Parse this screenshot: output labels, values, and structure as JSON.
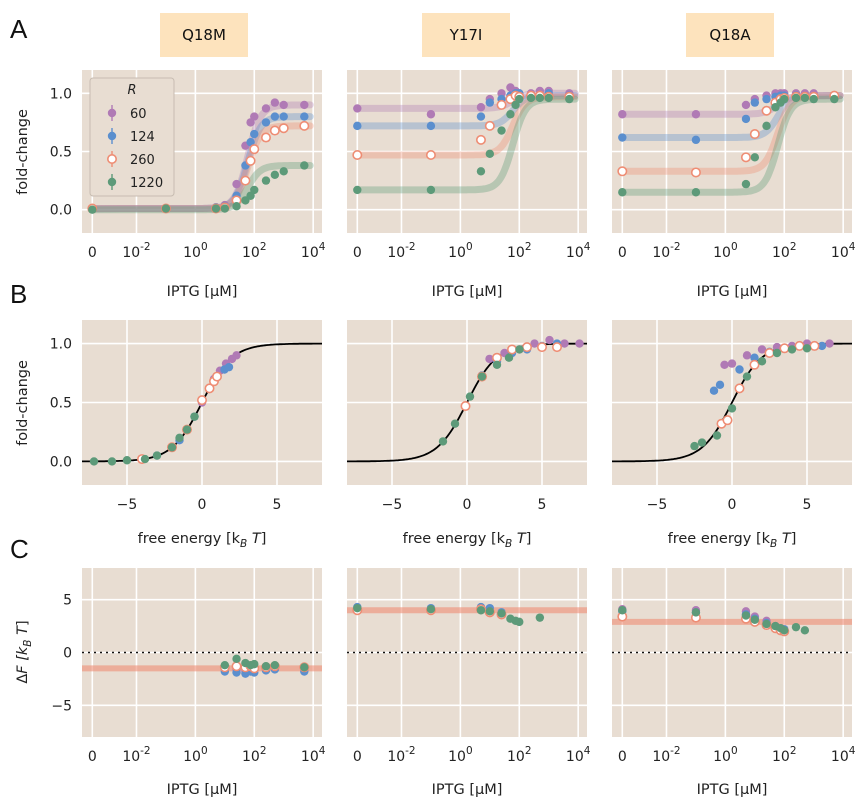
{
  "panel_letters": [
    "A",
    "B",
    "C"
  ],
  "mutant_titles": [
    "Q18M",
    "Y17I",
    "Q18A"
  ],
  "colors": {
    "60": "#b07ab5",
    "124": "#5b8fce",
    "260": "#ee8d74",
    "1220": "#5d9a79",
    "panel_bg": "#e8ddd2",
    "title_box": "#fde3bd",
    "master_curve": "#000000"
  },
  "legend": {
    "title": "R",
    "entries": [
      "60",
      "124",
      "260",
      "1220"
    ],
    "placement": "upper-left",
    "marker_260": "open-circle"
  },
  "chart_data": [
    {
      "type": "scatter",
      "row": "A",
      "xlabel": "IPTG [µM]",
      "ylabel": "fold-change",
      "x_scale": "symlog",
      "x_ticks": [
        "0",
        "10^-2",
        "10^0",
        "10^2",
        "10^4"
      ],
      "y_ticks": [
        "0.0",
        "0.5",
        "1.0"
      ],
      "ylim": [
        -0.2,
        1.2
      ],
      "grid": true,
      "panels": [
        {
          "title": "Q18M",
          "x": [
            0,
            0.1,
            5,
            10,
            25,
            50,
            75,
            100,
            250,
            500,
            1000,
            5000
          ],
          "series": [
            {
              "name": "60",
              "y": [
                0.01,
                0.01,
                0.02,
                0.04,
                0.22,
                0.55,
                0.75,
                0.8,
                0.87,
                0.92,
                0.9,
                0.9
              ]
            },
            {
              "name": "124",
              "y": [
                0.01,
                0.01,
                0.02,
                0.03,
                0.12,
                0.38,
                0.58,
                0.65,
                0.75,
                0.8,
                0.8,
                0.8
              ]
            },
            {
              "name": "260",
              "y": [
                0.01,
                0.01,
                0.01,
                0.02,
                0.08,
                0.25,
                0.42,
                0.52,
                0.62,
                0.68,
                0.7,
                0.72
              ]
            },
            {
              "name": "1220",
              "y": [
                0.0,
                0.01,
                0.01,
                0.01,
                0.03,
                0.08,
                0.12,
                0.17,
                0.25,
                0.3,
                0.33,
                0.38
              ]
            }
          ]
        },
        {
          "title": "Y17I",
          "x": [
            0,
            0.1,
            5,
            10,
            25,
            50,
            75,
            100,
            250,
            500,
            1000,
            5000
          ],
          "series": [
            {
              "name": "60",
              "y": [
                0.87,
                0.82,
                0.88,
                0.95,
                1.0,
                1.05,
                1.02,
                1.0,
                1.0,
                1.02,
                1.02,
                1.0
              ]
            },
            {
              "name": "124",
              "y": [
                0.72,
                0.72,
                0.8,
                0.92,
                0.95,
                0.98,
                1.0,
                1.0,
                0.98,
                0.98,
                1.0,
                0.98
              ]
            },
            {
              "name": "260",
              "y": [
                0.47,
                0.47,
                0.6,
                0.72,
                0.9,
                0.95,
                0.98,
                0.97,
                0.98,
                0.98,
                0.97,
                0.97
              ]
            },
            {
              "name": "1220",
              "y": [
                0.17,
                0.17,
                0.33,
                0.48,
                0.68,
                0.82,
                0.9,
                0.95,
                0.96,
                0.96,
                0.96,
                0.95
              ]
            }
          ]
        },
        {
          "title": "Q18A",
          "x": [
            0,
            0.1,
            5,
            10,
            25,
            50,
            75,
            100,
            250,
            500,
            1000,
            5000
          ],
          "series": [
            {
              "name": "60",
              "y": [
                0.82,
                0.82,
                0.9,
                0.95,
                0.98,
                1.0,
                1.0,
                1.0,
                1.0,
                1.0,
                1.0,
                0.98
              ]
            },
            {
              "name": "124",
              "y": [
                0.62,
                0.6,
                0.78,
                0.92,
                0.95,
                0.97,
                0.98,
                0.98,
                0.98,
                0.97,
                0.97,
                0.98
              ]
            },
            {
              "name": "260",
              "y": [
                0.33,
                0.32,
                0.45,
                0.65,
                0.85,
                0.92,
                0.95,
                0.96,
                0.97,
                0.97,
                0.97,
                0.98
              ]
            },
            {
              "name": "1220",
              "y": [
                0.15,
                0.15,
                0.22,
                0.45,
                0.72,
                0.88,
                0.92,
                0.95,
                0.96,
                0.96,
                0.95,
                0.95
              ]
            }
          ]
        }
      ]
    },
    {
      "type": "scatter",
      "row": "B",
      "xlabel": "free energy [k_B T]",
      "ylabel": "fold-change",
      "xlim": [
        -8,
        8
      ],
      "ylim": [
        -0.2,
        1.2
      ],
      "x_ticks": [
        "−5",
        "0",
        "5"
      ],
      "y_ticks": [
        "0.0",
        "0.5",
        "1.0"
      ],
      "master_curve": "1/(1+exp(-F))",
      "grid": true,
      "panels": [
        {
          "title": "Q18M",
          "points": [
            {
              "name": "60",
              "x": [
                -1.0,
                0.0,
                0.8,
                1.2,
                1.6,
                2.0,
                2.3
              ],
              "y": [
                0.27,
                0.5,
                0.7,
                0.77,
                0.83,
                0.87,
                0.9
              ]
            },
            {
              "name": "124",
              "x": [
                -3.0,
                -1.5,
                -0.5,
                0.5,
                1.0,
                1.5,
                1.8
              ],
              "y": [
                0.05,
                0.18,
                0.38,
                0.62,
                0.72,
                0.78,
                0.8
              ]
            },
            {
              "name": "260",
              "x": [
                -4.0,
                -2.0,
                -1.0,
                0.0,
                0.5,
                0.8,
                1.0
              ],
              "y": [
                0.02,
                0.12,
                0.27,
                0.52,
                0.62,
                0.68,
                0.72
              ]
            },
            {
              "name": "1220",
              "x": [
                -7.2,
                -6.0,
                -5.0,
                -3.8,
                -3.0,
                -2.0,
                -1.5,
                -1.0,
                -0.5
              ],
              "y": [
                0.0,
                0.0,
                0.01,
                0.02,
                0.05,
                0.12,
                0.2,
                0.27,
                0.38
              ]
            }
          ]
        },
        {
          "title": "Y17I",
          "points": [
            {
              "name": "60",
              "x": [
                1.5,
                2.5,
                3.5,
                4.5,
                5.5,
                6.5,
                7.5
              ],
              "y": [
                0.87,
                0.92,
                0.95,
                1.0,
                1.03,
                1.0,
                1.0
              ]
            },
            {
              "name": "124",
              "x": [
                1.0,
                2.0,
                3.0,
                4.0,
                5.0,
                6.0
              ],
              "y": [
                0.73,
                0.85,
                0.92,
                0.95,
                0.98,
                1.0
              ]
            },
            {
              "name": "260",
              "x": [
                -0.1,
                1.0,
                2.0,
                3.0,
                4.0,
                5.0,
                6.0
              ],
              "y": [
                0.47,
                0.72,
                0.88,
                0.95,
                0.97,
                0.97,
                0.97
              ]
            },
            {
              "name": "1220",
              "x": [
                -1.6,
                -0.8,
                0.2,
                1.0,
                2.0,
                2.8,
                3.5
              ],
              "y": [
                0.17,
                0.32,
                0.55,
                0.72,
                0.82,
                0.88,
                0.95
              ]
            }
          ]
        },
        {
          "title": "Q18A",
          "points": [
            {
              "name": "60",
              "x": [
                -0.5,
                0.0,
                1.0,
                2.0,
                3.0,
                4.0,
                5.0,
                6.5
              ],
              "y": [
                0.82,
                0.83,
                0.9,
                0.95,
                0.97,
                0.98,
                1.0,
                1.0
              ]
            },
            {
              "name": "124",
              "x": [
                -1.2,
                -0.8,
                0.5,
                1.5,
                2.5,
                3.5,
                4.5,
                6.0
              ],
              "y": [
                0.6,
                0.65,
                0.78,
                0.88,
                0.93,
                0.96,
                0.98,
                0.98
              ]
            },
            {
              "name": "260",
              "x": [
                -0.7,
                -0.3,
                0.5,
                1.5,
                2.5,
                3.5,
                4.5,
                5.5
              ],
              "y": [
                0.32,
                0.35,
                0.62,
                0.82,
                0.92,
                0.96,
                0.98,
                0.98
              ]
            },
            {
              "name": "1220",
              "x": [
                -2.5,
                -2.0,
                -1.0,
                0.0,
                1.0,
                2.0,
                3.0,
                4.0,
                5.0
              ],
              "y": [
                0.13,
                0.16,
                0.22,
                0.45,
                0.72,
                0.85,
                0.92,
                0.95,
                0.96
              ]
            }
          ]
        }
      ]
    },
    {
      "type": "scatter",
      "row": "C",
      "xlabel": "IPTG [µM]",
      "ylabel": "ΔF [k_B T]",
      "x_scale": "symlog",
      "x_ticks": [
        "0",
        "10^-2",
        "10^0",
        "10^2",
        "10^4"
      ],
      "y_ticks": [
        "−5",
        "0",
        "5"
      ],
      "ylim": [
        -8,
        8
      ],
      "reference_line": 0,
      "grid": true,
      "panels": [
        {
          "title": "Q18M",
          "fit_value": -1.5,
          "points_x": [
            10,
            25,
            50,
            75,
            100,
            250,
            500,
            5000
          ],
          "series": [
            {
              "name": "60",
              "y": [
                -1.5,
                -1.6,
                -1.8,
                -1.7,
                -1.6,
                -1.5,
                -1.5,
                -1.6
              ]
            },
            {
              "name": "124",
              "y": [
                -1.8,
                -1.9,
                -2.0,
                -1.8,
                -1.9,
                -1.7,
                -1.6,
                -1.8
              ]
            },
            {
              "name": "260",
              "y": [
                -1.4,
                -1.3,
                -1.4,
                -1.3,
                -1.5,
                -1.4,
                -1.3,
                -1.4
              ]
            },
            {
              "name": "1220",
              "y": [
                -1.2,
                -0.6,
                -1.0,
                -1.2,
                -1.1,
                -1.3,
                -1.2,
                -1.4
              ]
            }
          ]
        },
        {
          "title": "Y17I",
          "fit_value": 4.0,
          "points_x": [
            0,
            0.1,
            5,
            10,
            25,
            50,
            75,
            100,
            500
          ],
          "series": [
            {
              "name": "60",
              "y": [
                4.2,
                4.1,
                4.1,
                4.0,
                null,
                null,
                null,
                null,
                null
              ]
            },
            {
              "name": "124",
              "y": [
                4.3,
                4.2,
                4.3,
                4.2,
                3.8,
                null,
                null,
                null,
                null
              ]
            },
            {
              "name": "260",
              "y": [
                4.0,
                4.0,
                4.1,
                3.8,
                3.6,
                null,
                null,
                null,
                null
              ]
            },
            {
              "name": "1220",
              "y": [
                4.2,
                4.1,
                4.0,
                3.9,
                3.7,
                3.2,
                3.0,
                2.9,
                3.3
              ]
            }
          ]
        },
        {
          "title": "Q18A",
          "fit_value": 2.9,
          "points_x": [
            0,
            0.1,
            5,
            10,
            25,
            50,
            75,
            100,
            250,
            500
          ],
          "series": [
            {
              "name": "60",
              "y": [
                4.1,
                4.0,
                3.9,
                3.4,
                3.0,
                2.5,
                2.3,
                2.2,
                null,
                null
              ]
            },
            {
              "name": "124",
              "y": [
                3.9,
                3.8,
                3.6,
                3.2,
                2.8,
                2.4,
                2.2,
                2.2,
                null,
                null
              ]
            },
            {
              "name": "260",
              "y": [
                3.4,
                3.3,
                3.2,
                2.9,
                2.6,
                2.3,
                2.1,
                2.0,
                null,
                null
              ]
            },
            {
              "name": "1220",
              "y": [
                4.0,
                3.8,
                3.5,
                3.1,
                2.7,
                2.5,
                2.3,
                2.1,
                2.4,
                2.1
              ]
            }
          ]
        }
      ]
    }
  ]
}
